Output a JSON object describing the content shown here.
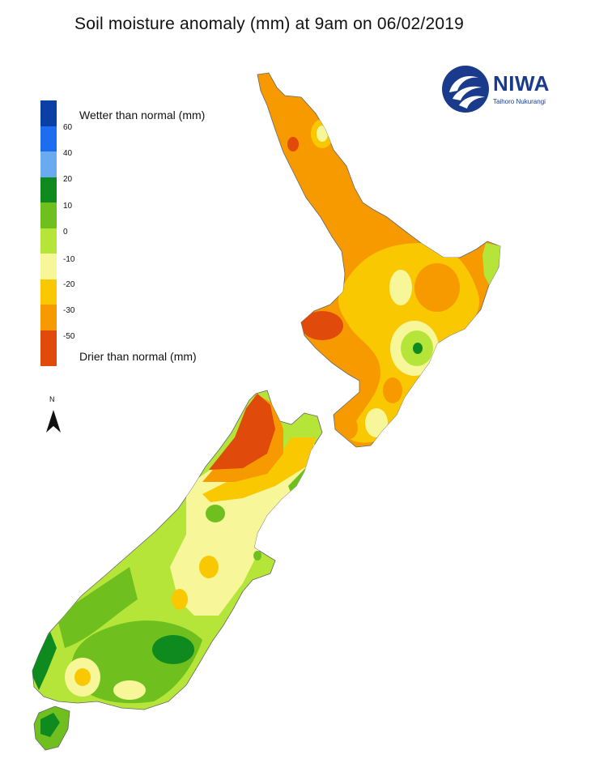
{
  "title": "Soil moisture anomaly (mm) at 9am on 06/02/2019",
  "legend": {
    "wetter_label": "Wetter than normal (mm)",
    "drier_label": "Drier than normal (mm)",
    "ticks": [
      "60",
      "40",
      "20",
      "10",
      "0",
      "-10",
      "-20",
      "-30",
      "-50"
    ],
    "colors": [
      "#0a3fa6",
      "#1e6cf0",
      "#6aaaf0",
      "#0f8a1f",
      "#6fbf1f",
      "#b6e53a",
      "#f7f79a",
      "#f9c800",
      "#f79a00",
      "#e04a0a"
    ]
  },
  "north_arrow": {
    "label": "N"
  },
  "logo": {
    "name": "NIWA",
    "subtitle": "Taihoro Nukurangi",
    "color": "#1a3b8c"
  }
}
